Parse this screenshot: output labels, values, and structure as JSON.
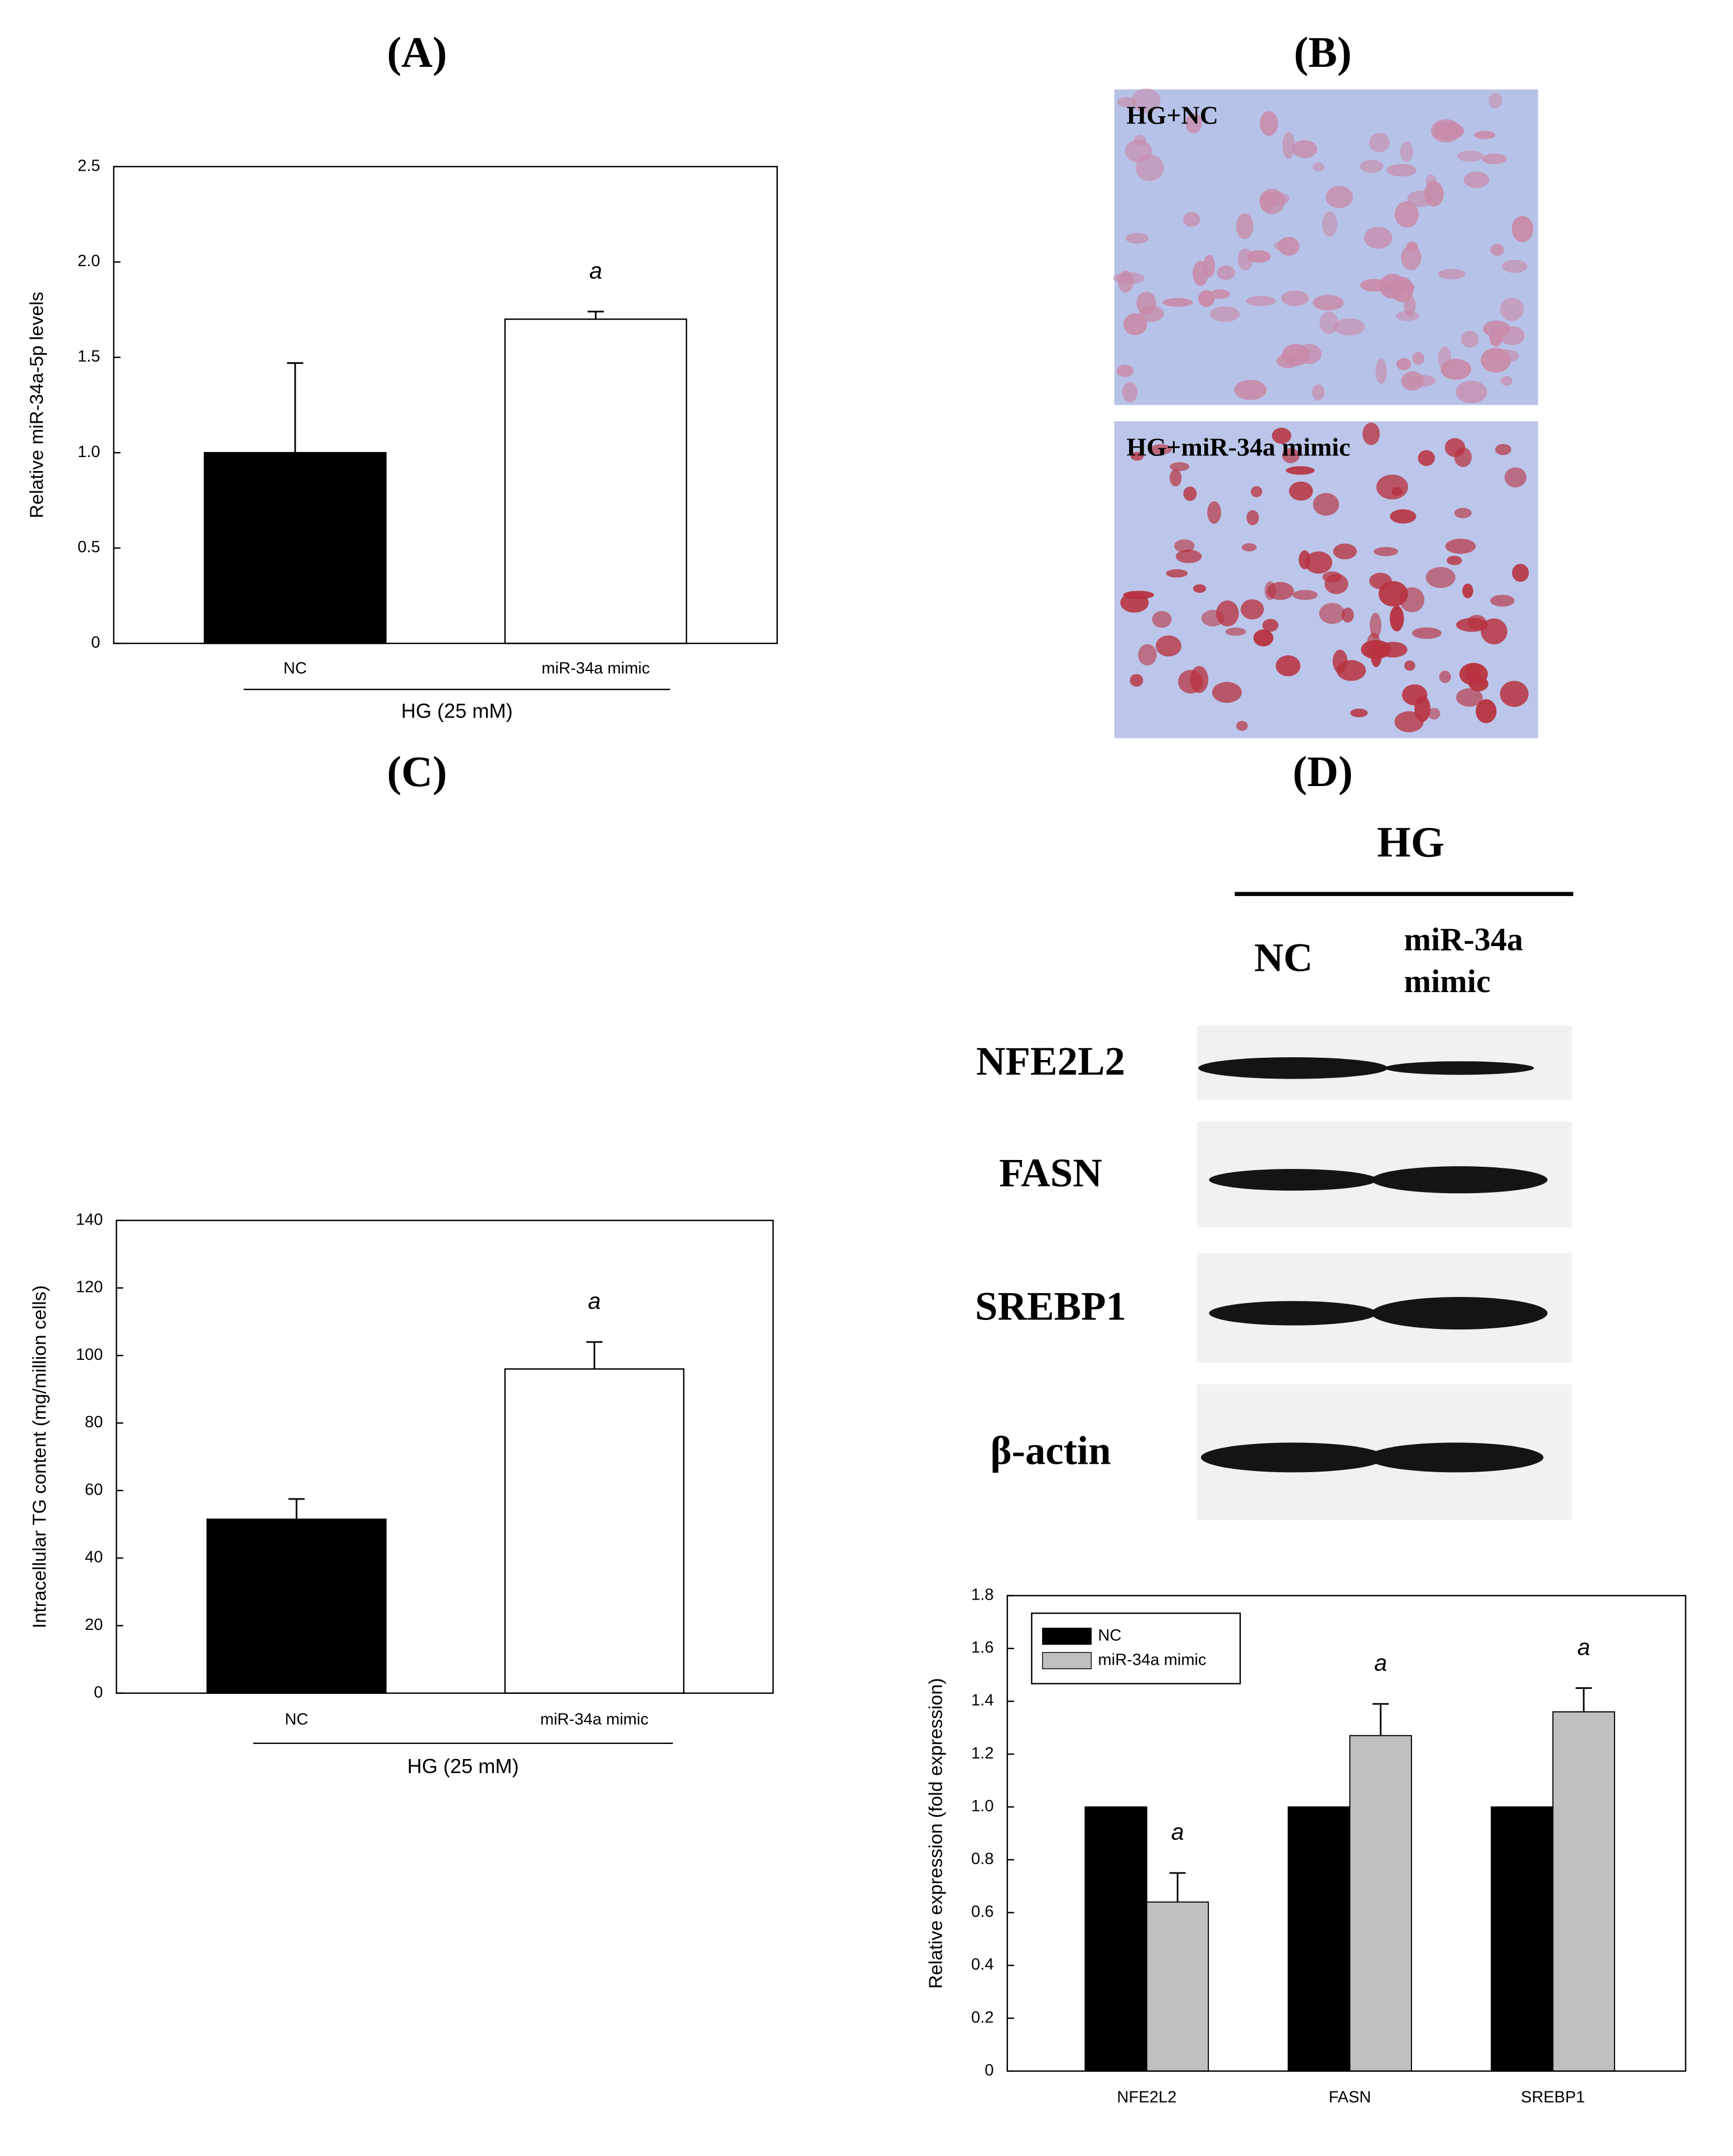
{
  "panel_labels": [
    "(A)",
    "(B)",
    "(C)",
    "(D)"
  ],
  "micrograph_labels": [
    "HG+NC",
    "HG+miR-34a mimic"
  ],
  "blot": {
    "header": "HG",
    "columns": [
      "NC",
      [
        "miR-34a",
        "mimic"
      ]
    ],
    "rows": [
      "NFE2L2",
      "FASN",
      "SREBP1",
      "β-actin"
    ]
  },
  "chart_data": [
    {
      "type": "bar",
      "y_label": "Relative miR-34a-5p levels",
      "group_label": "HG (25 mM)",
      "categories": [
        "NC",
        "miR-34a mimic"
      ],
      "values": [
        1.0,
        1.7
      ],
      "errors": [
        0.47,
        0.04
      ],
      "colors": [
        "#000000",
        "#ffffff"
      ],
      "annotations": [
        null,
        "a"
      ],
      "ylim": [
        0,
        2.5
      ],
      "yticks": [
        0,
        0.5,
        {
          "value": 1,
          "label": "1.0"
        },
        1.5,
        {
          "value": 2,
          "label": "2.0"
        },
        2.5
      ]
    },
    {
      "type": "bar",
      "y_label": "Intracellular TG content (mg/million cells)",
      "group_label": "HG (25 mM)",
      "categories": [
        "NC",
        "miR-34a mimic"
      ],
      "values": [
        51.5,
        96
      ],
      "errors": [
        6,
        8
      ],
      "colors": [
        "#000000",
        "#ffffff"
      ],
      "annotations": [
        null,
        "a"
      ],
      "ylim": [
        0,
        140
      ],
      "yticks": [
        0,
        20,
        40,
        60,
        80,
        100,
        120,
        140
      ]
    },
    {
      "type": "grouped_bar",
      "y_label": "Relative expression (fold expression)",
      "categories": [
        "NFE2L2",
        "FASN",
        "SREBP1"
      ],
      "legend": "upper left",
      "series": [
        {
          "name": "NC",
          "color": "#000000",
          "values": [
            1,
            1,
            1
          ]
        },
        {
          "name": "miR-34a mimic",
          "color": "#c0c0c0",
          "values": [
            0.64,
            1.27,
            1.36
          ],
          "errors": [
            0.11,
            0.12,
            0.09
          ],
          "annotations": [
            "a",
            "a",
            "a"
          ]
        }
      ],
      "ylim": [
        0,
        1.8
      ],
      "yticks": [
        0,
        0.2,
        0.4,
        0.6,
        0.8,
        {
          "value": 1,
          "label": "1.0"
        },
        1.2,
        1.4,
        1.6,
        1.8
      ]
    }
  ]
}
